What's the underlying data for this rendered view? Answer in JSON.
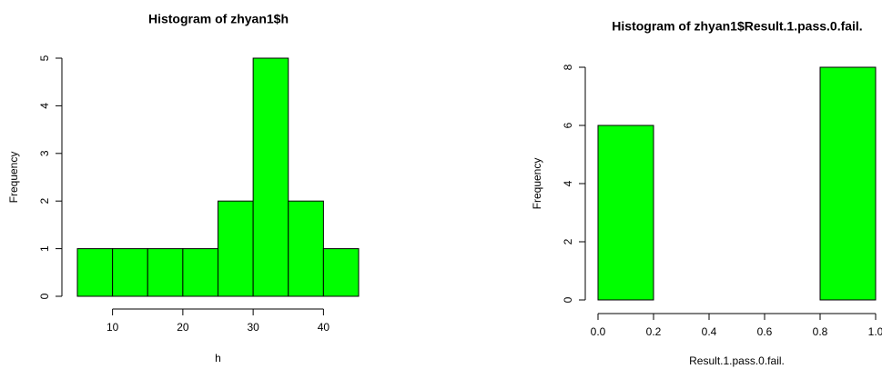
{
  "chart_data": [
    {
      "type": "histogram",
      "title": "Histogram of zhyan1$h",
      "x_label": "h",
      "y_label": "Frequency",
      "bins": [
        5,
        10,
        15,
        20,
        25,
        30,
        35,
        40,
        45
      ],
      "counts": [
        1,
        1,
        1,
        1,
        2,
        5,
        2,
        1
      ],
      "color": "#00ff00",
      "xlim": [
        5,
        45
      ],
      "xticks": [
        10,
        20,
        30,
        40
      ],
      "ylim": [
        0,
        5
      ],
      "yticks": [
        0,
        1,
        2,
        3,
        4,
        5
      ]
    },
    {
      "type": "histogram",
      "title": "Histogram of zhyan1$Result.1.pass.0.fail.",
      "x_label": "Result.1.pass.0.fail.",
      "y_label": "Frequency",
      "bins": [
        0,
        0.2,
        0.4,
        0.6,
        0.8,
        1
      ],
      "counts": [
        6,
        0,
        0,
        0,
        8
      ],
      "color": "#00ff00",
      "xlim": [
        0,
        1
      ],
      "xticks": [
        {
          "value": 0,
          "label": "0.0"
        },
        0.2,
        0.4,
        0.6,
        0.8,
        {
          "value": 1,
          "label": "1.0"
        }
      ],
      "ylim": [
        0,
        8
      ],
      "yticks": [
        0,
        2,
        4,
        6,
        8
      ]
    }
  ]
}
